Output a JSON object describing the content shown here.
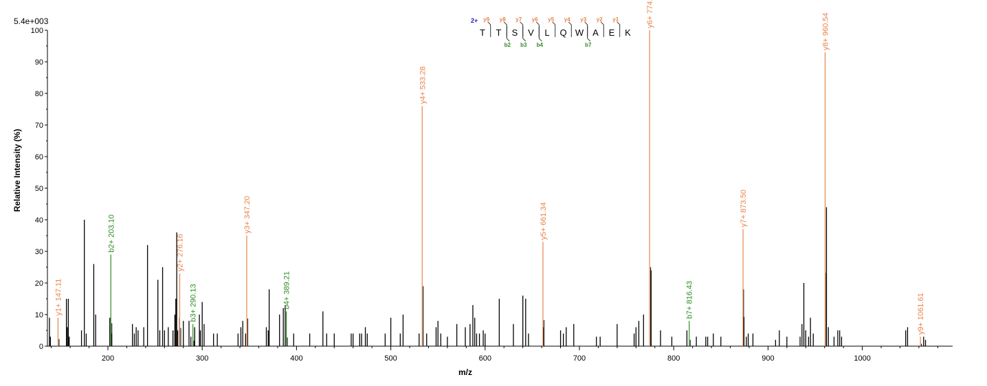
{
  "chart_data": {
    "type": "bar",
    "subtype": "mass-spectrum",
    "intensity_scale_label": "5.4e+003",
    "xlabel": "m/z",
    "ylabel": "Relative   Intensity (%)",
    "xlim": [
      137,
      1090
    ],
    "ylim": [
      0,
      100
    ],
    "x_ticks": [
      200,
      300,
      400,
      500,
      600,
      700,
      800,
      900,
      1000
    ],
    "y_ticks": [
      0,
      10,
      20,
      30,
      40,
      50,
      60,
      70,
      80,
      90,
      100
    ],
    "grid": false,
    "colors": {
      "y_ion": "#E8834A",
      "b_ion": "#2E8B22",
      "peak": "#000000",
      "charge": "#1A1ACC"
    },
    "peptide": {
      "charge_label": "2+",
      "sequence": [
        "T",
        "T",
        "S",
        "V",
        "L",
        "Q",
        "W",
        "A",
        "E",
        "K"
      ],
      "y_marks": [
        {
          "label": "y9",
          "after": 0
        },
        {
          "label": "y8",
          "after": 1
        },
        {
          "label": "y7",
          "after": 2
        },
        {
          "label": "y6",
          "after": 3
        },
        {
          "label": "y5",
          "after": 4
        },
        {
          "label": "y4",
          "after": 5
        },
        {
          "label": "y3",
          "after": 6
        },
        {
          "label": "y2",
          "after": 7
        },
        {
          "label": "y1",
          "after": 8
        }
      ],
      "b_marks": [
        {
          "label": "b2",
          "after": 1
        },
        {
          "label": "b3",
          "after": 2
        },
        {
          "label": "b4",
          "after": 3
        },
        {
          "label": "b7",
          "after": 6
        }
      ]
    },
    "annotated_peaks": [
      {
        "ion": "y",
        "mz": 147.11,
        "intensity": 9,
        "label": "y1+ 147.11"
      },
      {
        "ion": "b",
        "mz": 203.1,
        "intensity": 29,
        "label": "b2+ 203.10"
      },
      {
        "ion": "y",
        "mz": 276.16,
        "intensity": 23,
        "label": "y2+ 276.16"
      },
      {
        "ion": "b",
        "mz": 290.13,
        "intensity": 7,
        "label": "b3+ 290.13"
      },
      {
        "ion": "y",
        "mz": 347.2,
        "intensity": 35,
        "label": "y3+ 347.20"
      },
      {
        "ion": "b",
        "mz": 389.21,
        "intensity": 11,
        "label": "b4+ 389.21"
      },
      {
        "ion": "y",
        "mz": 533.28,
        "intensity": 76,
        "label": "y4+ 533.28"
      },
      {
        "ion": "y",
        "mz": 661.34,
        "intensity": 33,
        "label": "y5+ 661.34"
      },
      {
        "ion": "y",
        "mz": 774.43,
        "intensity": 100,
        "label": "y6+ 774.43"
      },
      {
        "ion": "b",
        "mz": 816.43,
        "intensity": 8,
        "label": "b7+ 816.43"
      },
      {
        "ion": "y",
        "mz": 873.5,
        "intensity": 37,
        "label": "y7+ 873.50"
      },
      {
        "ion": "y",
        "mz": 960.54,
        "intensity": 93,
        "label": "y8+ 960.54"
      },
      {
        "ion": "y",
        "mz": 1061.61,
        "intensity": 3,
        "label": "y9+ 1061.61"
      }
    ],
    "peaks": [
      [
        138,
        9
      ],
      [
        139,
        3
      ],
      [
        156,
        15
      ],
      [
        157,
        6
      ],
      [
        158,
        15
      ],
      [
        159,
        3
      ],
      [
        172,
        5
      ],
      [
        175,
        40
      ],
      [
        177,
        4
      ],
      [
        185,
        26
      ],
      [
        187,
        10
      ],
      [
        202,
        9
      ],
      [
        204,
        4
      ],
      [
        226,
        7
      ],
      [
        228,
        4
      ],
      [
        230,
        6
      ],
      [
        232,
        5
      ],
      [
        238,
        6
      ],
      [
        242,
        32
      ],
      [
        253,
        21
      ],
      [
        255,
        5
      ],
      [
        258,
        25
      ],
      [
        260,
        5
      ],
      [
        264,
        6
      ],
      [
        269,
        5
      ],
      [
        271,
        10
      ],
      [
        272,
        15
      ],
      [
        273,
        36
      ],
      [
        274,
        5
      ],
      [
        276,
        9
      ],
      [
        280,
        8
      ],
      [
        286,
        8
      ],
      [
        288,
        3
      ],
      [
        292,
        6
      ],
      [
        297,
        10
      ],
      [
        298,
        5
      ],
      [
        300,
        14
      ],
      [
        302,
        7
      ],
      [
        312,
        4
      ],
      [
        316,
        4
      ],
      [
        338,
        4
      ],
      [
        341,
        6
      ],
      [
        343,
        8
      ],
      [
        346,
        4
      ],
      [
        368,
        6
      ],
      [
        370,
        5
      ],
      [
        371,
        18
      ],
      [
        382,
        10
      ],
      [
        386,
        12
      ],
      [
        388,
        13
      ],
      [
        397,
        4
      ],
      [
        414,
        4
      ],
      [
        428,
        11
      ],
      [
        432,
        4
      ],
      [
        440,
        4
      ],
      [
        458,
        4
      ],
      [
        460,
        4
      ],
      [
        467,
        4
      ],
      [
        469,
        4
      ],
      [
        473,
        6
      ],
      [
        475,
        4
      ],
      [
        494,
        4
      ],
      [
        500,
        9
      ],
      [
        510,
        4
      ],
      [
        513,
        10
      ],
      [
        530,
        4
      ],
      [
        538,
        4
      ],
      [
        548,
        6
      ],
      [
        550,
        8
      ],
      [
        553,
        4
      ],
      [
        560,
        3
      ],
      [
        570,
        7
      ],
      [
        579,
        6
      ],
      [
        584,
        7
      ],
      [
        587,
        13
      ],
      [
        589,
        9
      ],
      [
        591,
        4
      ],
      [
        594,
        4
      ],
      [
        598,
        5
      ],
      [
        600,
        4
      ],
      [
        615,
        15
      ],
      [
        630,
        7
      ],
      [
        640,
        16
      ],
      [
        643,
        15
      ],
      [
        646,
        4
      ],
      [
        662,
        6
      ],
      [
        680,
        5
      ],
      [
        683,
        4
      ],
      [
        686,
        6
      ],
      [
        694,
        7
      ],
      [
        718,
        3
      ],
      [
        722,
        3
      ],
      [
        740,
        7
      ],
      [
        758,
        4
      ],
      [
        760,
        6
      ],
      [
        763,
        8
      ],
      [
        768,
        10
      ],
      [
        776,
        24
      ],
      [
        786,
        5
      ],
      [
        798,
        3
      ],
      [
        814,
        5
      ],
      [
        824,
        3
      ],
      [
        834,
        3
      ],
      [
        836,
        3
      ],
      [
        842,
        4
      ],
      [
        850,
        3
      ],
      [
        874,
        18
      ],
      [
        877,
        3
      ],
      [
        879,
        4
      ],
      [
        884,
        4
      ],
      [
        908,
        2
      ],
      [
        912,
        5
      ],
      [
        920,
        3
      ],
      [
        934,
        3
      ],
      [
        936,
        7
      ],
      [
        938,
        20
      ],
      [
        940,
        5
      ],
      [
        943,
        3
      ],
      [
        945,
        9
      ],
      [
        948,
        4
      ],
      [
        962,
        44
      ],
      [
        964,
        6
      ],
      [
        970,
        3
      ],
      [
        974,
        5
      ],
      [
        976,
        5
      ],
      [
        978,
        3
      ],
      [
        1046,
        5
      ],
      [
        1048,
        6
      ],
      [
        1065,
        3
      ],
      [
        1067,
        2
      ]
    ]
  }
}
